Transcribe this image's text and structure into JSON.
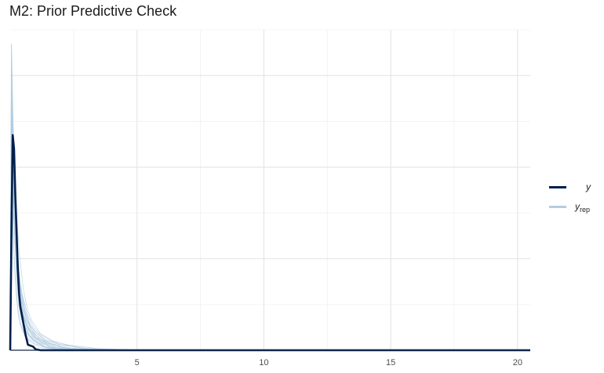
{
  "chart_data": {
    "type": "line",
    "title": "M2: Prior Predictive Check",
    "xlabel": "",
    "ylabel": "",
    "xlim": [
      0,
      20.5
    ],
    "ylim": [
      0,
      7.0
    ],
    "x_ticks": [
      5,
      10,
      15,
      20
    ],
    "x_tick_labels": [
      "5",
      "10",
      "15",
      "20"
    ],
    "grid": true,
    "legend_position": "right",
    "series": [
      {
        "name": "y",
        "color": "#011f4b",
        "x": [
          0.0,
          0.05,
          0.1,
          0.15,
          0.2,
          0.25,
          0.3,
          0.35,
          0.4,
          0.45,
          0.5,
          0.55,
          0.6,
          0.7,
          0.8,
          0.9,
          1.0,
          1.2,
          1.5,
          2.0,
          3.0,
          5.0,
          10.0,
          15.0,
          20.0,
          20.5
        ],
        "y": [
          0.0,
          2.6,
          4.7,
          4.4,
          3.4,
          2.6,
          1.8,
          1.25,
          0.95,
          0.8,
          0.65,
          0.5,
          0.35,
          0.12,
          0.1,
          0.08,
          0.02,
          0.0,
          0.0,
          0.0,
          0.0,
          0.0,
          0.0,
          0.0,
          0.0,
          0.0
        ]
      },
      {
        "name": "y_rep",
        "color": "#b3cde0",
        "x": [
          0.0,
          0.05,
          0.1,
          0.15,
          0.2,
          0.3,
          0.4,
          0.5,
          0.7,
          1.0,
          1.5,
          2.0,
          3.0,
          5.0,
          10.0,
          20.0,
          20.5
        ],
        "y": [
          0.0,
          6.7,
          5.2,
          3.8,
          2.8,
          1.7,
          1.1,
          0.8,
          0.45,
          0.25,
          0.08,
          0.03,
          0.01,
          0.0,
          0.0,
          0.0,
          0.0
        ]
      }
    ]
  },
  "legend": {
    "y_label": "y",
    "yrep_label": "y",
    "yrep_sub": "rep"
  }
}
